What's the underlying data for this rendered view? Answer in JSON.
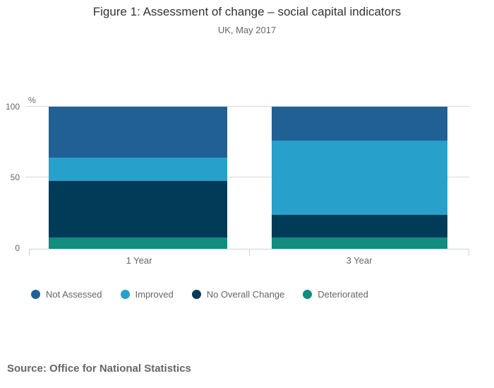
{
  "header": {
    "title": "Figure 1: Assessment of change – social capital indicators",
    "subtitle": "UK, May 2017"
  },
  "chart_data": {
    "type": "bar",
    "stacked": true,
    "title": "Figure 1: Assessment of change – social capital indicators",
    "subtitle": "UK, May 2017",
    "categories": [
      "1 Year",
      "3 Year"
    ],
    "series": [
      {
        "name": "Not Assessed",
        "color": "#206095",
        "values": [
          36,
          24
        ]
      },
      {
        "name": "Improved",
        "color": "#27a0cc",
        "values": [
          16,
          52
        ]
      },
      {
        "name": "No Overall Change",
        "color": "#003c57",
        "values": [
          40,
          16
        ]
      },
      {
        "name": "Deteriorated",
        "color": "#128c7d",
        "values": [
          8,
          8
        ]
      }
    ],
    "xlabel": "",
    "ylabel": "%",
    "ylim": [
      0,
      100
    ],
    "y_ticks": [
      0,
      50,
      100
    ],
    "grid": true,
    "legend_position": "bottom-left"
  },
  "footer": {
    "source": "Source: Office for National Statistics"
  }
}
